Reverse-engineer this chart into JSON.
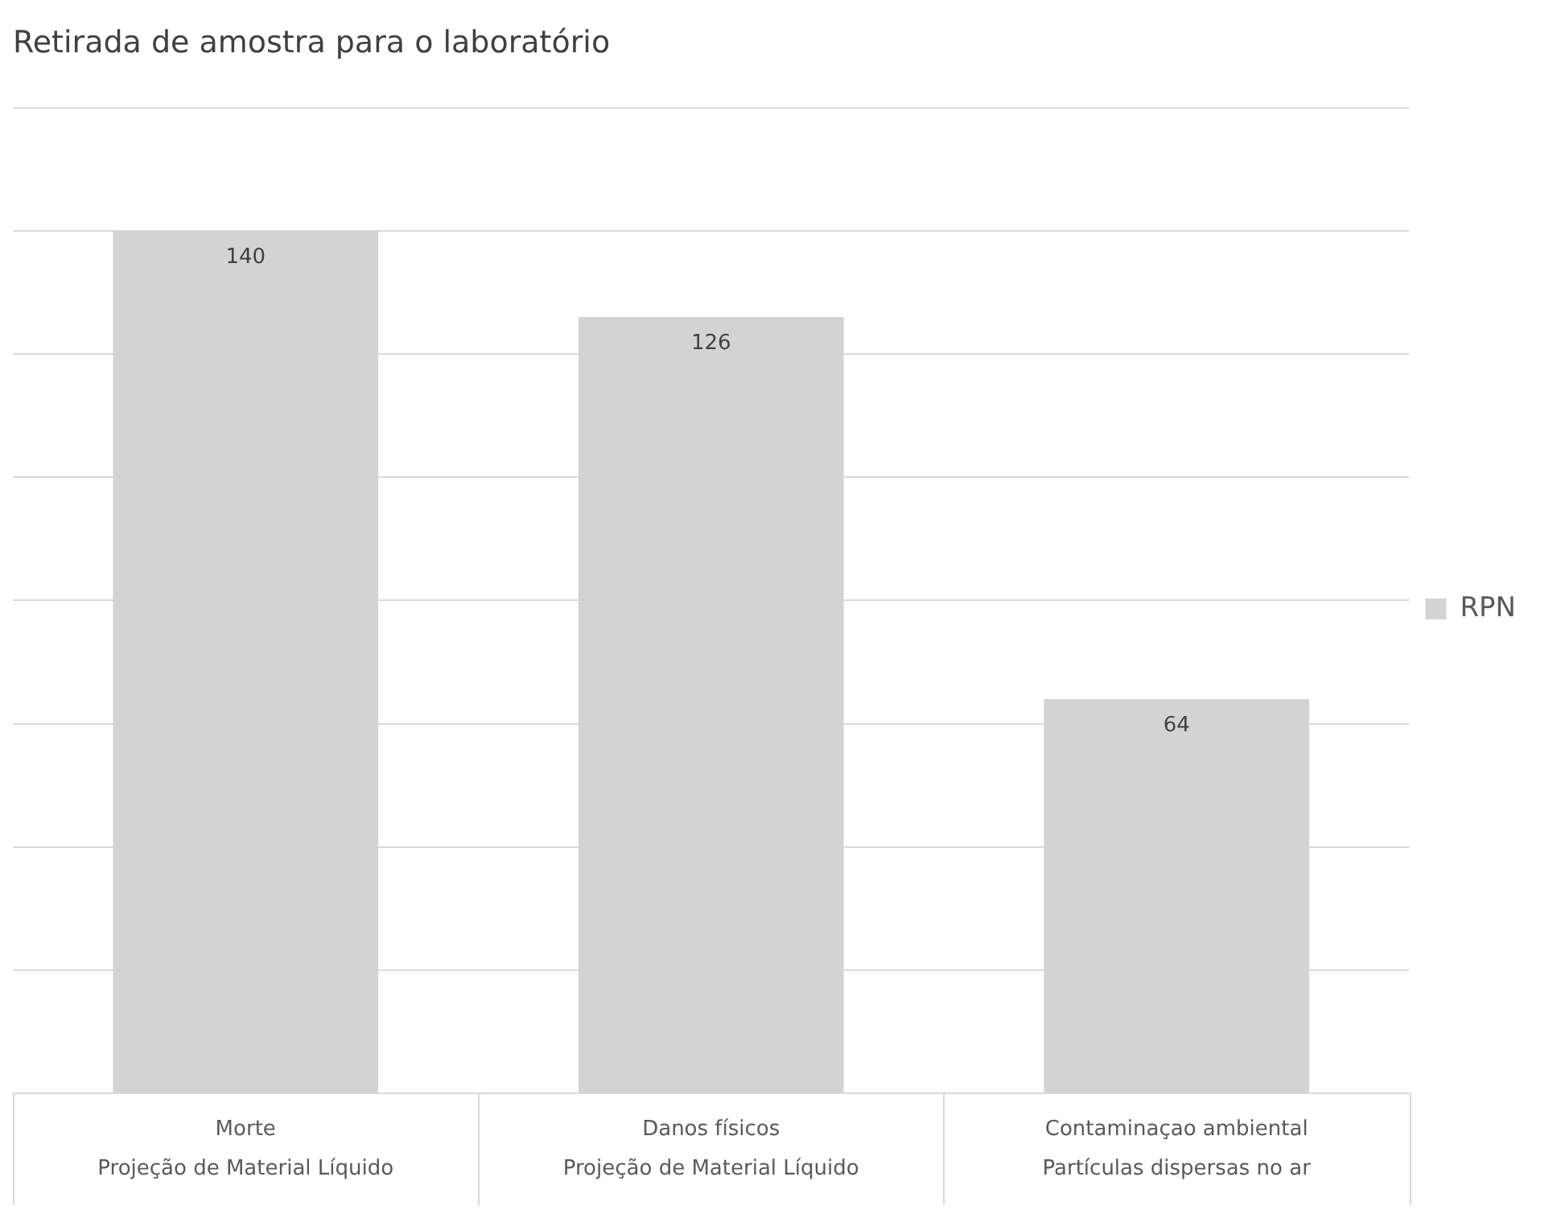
{
  "chart_data": {
    "type": "bar",
    "title": "Retirada de amostra para o laboratório",
    "categories": [
      "Morte\nProjeção de Material Líquido",
      "Danos físicos\nProjeção de Material Líquido",
      "Contaminaçao ambiental\nPartículas dispersas no ar"
    ],
    "series": [
      {
        "name": "RPN",
        "color": "#d3d3d3",
        "values": [
          140,
          126,
          64
        ]
      }
    ],
    "ylim": [
      0,
      160
    ],
    "yticks": [
      {
        "value": 0,
        "label": null
      },
      {
        "value": 20,
        "label": null
      },
      {
        "value": 40,
        "label": null
      },
      {
        "value": 60,
        "label": null
      },
      {
        "value": 80,
        "label": null
      },
      {
        "value": 100,
        "label": null
      },
      {
        "value": 120,
        "label": null
      },
      {
        "value": 140,
        "label": null
      },
      {
        "value": 160,
        "label": null
      }
    ],
    "tick_labels": "x",
    "grid": "y",
    "legend": "right",
    "data_labels": true
  }
}
